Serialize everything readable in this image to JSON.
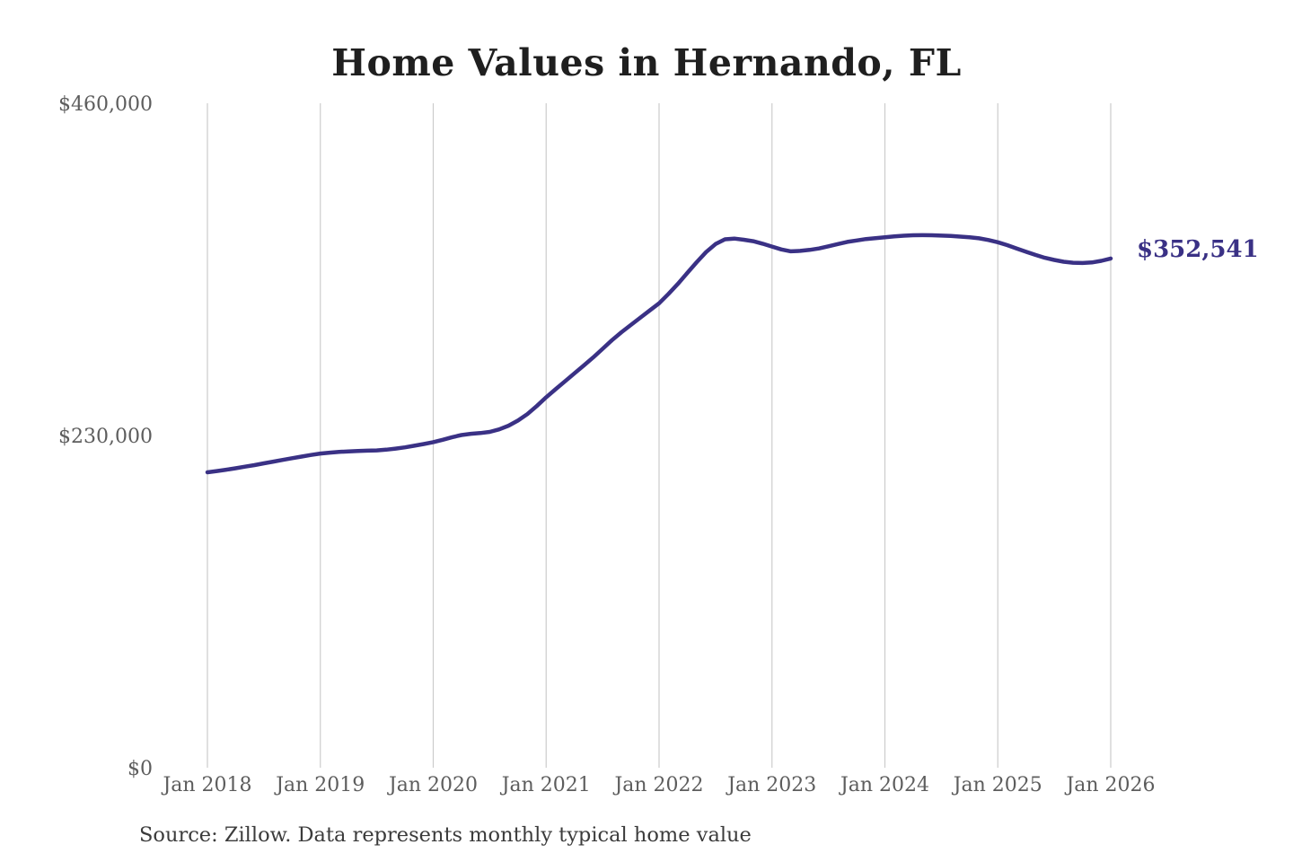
{
  "title": "Home Values in Hernando, FL",
  "source_note": "Source: Zillow. Data represents monthly typical home value",
  "current_value_label": "$352,541",
  "colors": {
    "line": "#3a3185",
    "value_label": "#3a3185",
    "grid": "#cccccc",
    "title_text": "#1f1f1f",
    "axis_label_text": "#5d5d5d",
    "source_text": "#3b3b3b",
    "background": "#ffffff"
  },
  "chart_data": {
    "type": "line",
    "title": "Home Values in Hernando, FL",
    "series_name": "Monthly typical home value (Zillow)",
    "x_unit": "month",
    "x_range": [
      "2018-01",
      "2026-01"
    ],
    "x_tick_labels": [
      "Jan 2018",
      "Jan 2019",
      "Jan 2020",
      "Jan 2021",
      "Jan 2022",
      "Jan 2023",
      "Jan 2024",
      "Jan 2025",
      "Jan 2026"
    ],
    "y_ticks": [
      0,
      230000,
      460000
    ],
    "y_tick_labels": [
      "$0",
      "$230,000",
      "$460,000"
    ],
    "ylim": [
      0,
      460000
    ],
    "grid": "vertical-only",
    "legend": "none",
    "end_value": 352541,
    "end_label": "$352,541",
    "values_monthly": [
      204500,
      205400,
      206300,
      207300,
      208400,
      209500,
      210700,
      211900,
      213100,
      214300,
      215400,
      216500,
      217500,
      218100,
      218600,
      219000,
      219300,
      219500,
      219700,
      220200,
      220900,
      221800,
      222900,
      224100,
      225400,
      227000,
      228800,
      230300,
      231200,
      231700,
      232500,
      234200,
      236800,
      240300,
      244800,
      250400,
      256500,
      262000,
      267500,
      273000,
      278500,
      284000,
      290000,
      296000,
      301500,
      306500,
      311500,
      316500,
      321500,
      328000,
      335000,
      342500,
      350000,
      357000,
      362500,
      365800,
      366300,
      365500,
      364500,
      362800,
      360800,
      358800,
      357500,
      357800,
      358500,
      359500,
      361000,
      362500,
      364000,
      365000,
      366000,
      366600,
      367200,
      367800,
      368300,
      368600,
      368700,
      368600,
      368400,
      368100,
      367700,
      367200,
      366500,
      365300,
      363800,
      361800,
      359500,
      357200,
      355000,
      353000,
      351500,
      350300,
      349600,
      349400,
      349800,
      350900,
      352541
    ]
  }
}
